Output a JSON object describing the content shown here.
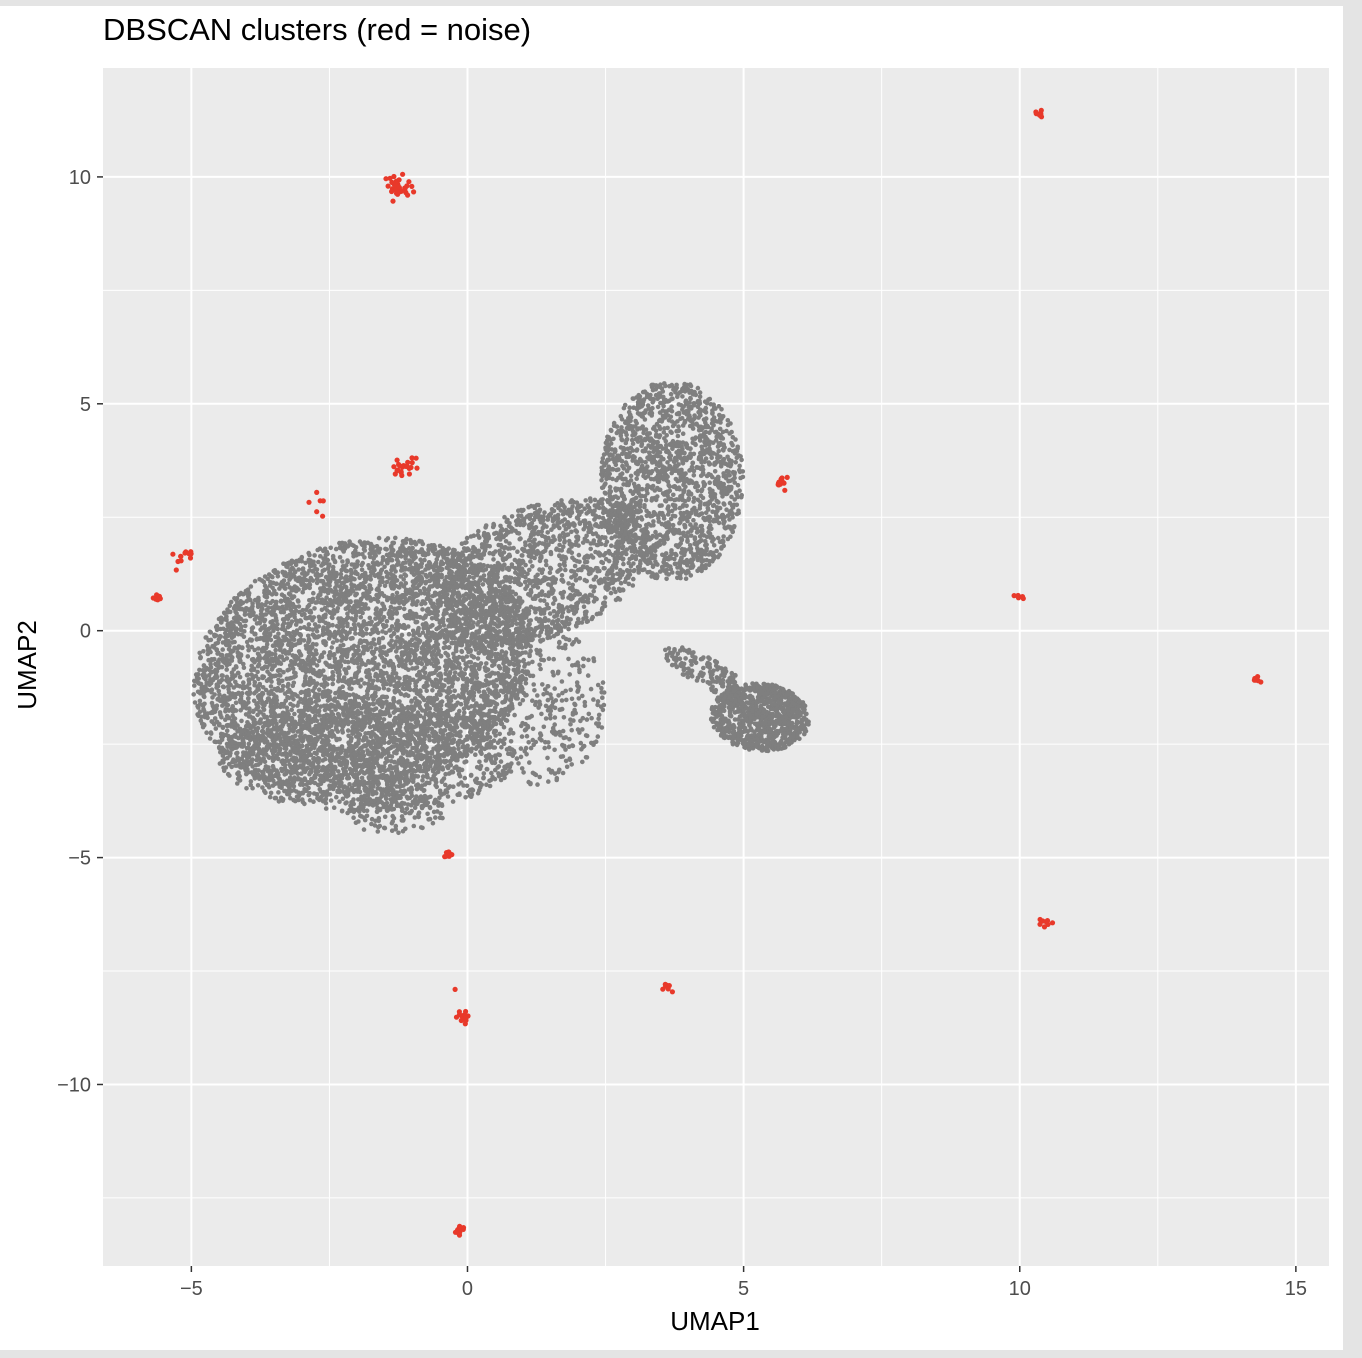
{
  "chart_data": {
    "type": "scatter",
    "title": "DBSCAN clusters (red = noise)",
    "xlabel": "UMAP1",
    "ylabel": "UMAP2",
    "xlim": [
      -6.6,
      15.6
    ],
    "ylim": [
      -14.0,
      12.4
    ],
    "x_ticks": [
      -5,
      0,
      5,
      10,
      15
    ],
    "y_ticks": [
      -10,
      -5,
      0,
      5,
      10
    ],
    "x_tick_labels": [
      "−5",
      "0",
      "5",
      "10",
      "15"
    ],
    "y_tick_labels": [
      "−10",
      "−5",
      "0",
      "5",
      "10"
    ],
    "grid": true,
    "legend": "none",
    "colors": {
      "panel_background": "#ebebeb",
      "grid": "#ffffff",
      "cluster": "#7f7f7f",
      "noise": "#e8392a"
    },
    "main_cluster_regions": [
      {
        "name": "main body",
        "cx": -1.9,
        "cy": -0.8,
        "rx": 3.2,
        "ry": 2.7,
        "angle_deg": 32,
        "n": 5200
      },
      {
        "name": "main body lower",
        "cx": -1.8,
        "cy": -2.8,
        "rx": 2.7,
        "ry": 1.2,
        "angle_deg": 0,
        "n": 1100
      },
      {
        "name": "main body tail",
        "cx": -1.3,
        "cy": -4.0,
        "rx": 0.9,
        "ry": 0.5,
        "angle_deg": 0,
        "n": 150
      },
      {
        "name": "bridge",
        "cx": 1.3,
        "cy": 1.3,
        "rx": 2.2,
        "ry": 1.4,
        "angle_deg": 30,
        "n": 1400
      },
      {
        "name": "lower middle lobe",
        "cx": 1.2,
        "cy": -1.6,
        "rx": 1.3,
        "ry": 1.8,
        "angle_deg": 0,
        "n": 450
      },
      {
        "name": "upper right lobe",
        "cx": 3.7,
        "cy": 3.3,
        "rx": 1.3,
        "ry": 2.2,
        "angle_deg": 0,
        "n": 1600
      },
      {
        "name": "thin arm",
        "cx": 4.3,
        "cy": -0.9,
        "rx": 0.9,
        "ry": 0.3,
        "angle_deg": -35,
        "n": 160
      },
      {
        "name": "right satellite cluster",
        "cx": 5.3,
        "cy": -1.9,
        "rx": 0.9,
        "ry": 0.75,
        "angle_deg": -10,
        "n": 900
      }
    ],
    "noise_groups": [
      {
        "x": -1.25,
        "y": 9.78,
        "spread": 0.12,
        "n": 34
      },
      {
        "x": 10.35,
        "y": 11.35,
        "spread": 0.06,
        "n": 8
      },
      {
        "x": -1.15,
        "y": 3.65,
        "spread": 0.12,
        "n": 22
      },
      {
        "x": -2.65,
        "y": 2.8,
        "spread": 0.15,
        "n": 6
      },
      {
        "x": -5.2,
        "y": 1.6,
        "spread": 0.12,
        "n": 12
      },
      {
        "x": -5.65,
        "y": 0.72,
        "spread": 0.04,
        "n": 6
      },
      {
        "x": 5.7,
        "y": 3.28,
        "spread": 0.07,
        "n": 12
      },
      {
        "x": 9.95,
        "y": 0.72,
        "spread": 0.07,
        "n": 6
      },
      {
        "x": 14.25,
        "y": -1.08,
        "spread": 0.05,
        "n": 7
      },
      {
        "x": -0.35,
        "y": -4.95,
        "spread": 0.05,
        "n": 8
      },
      {
        "x": 10.45,
        "y": -6.45,
        "spread": 0.05,
        "n": 10
      },
      {
        "x": 3.6,
        "y": -7.85,
        "spread": 0.06,
        "n": 7
      },
      {
        "x": -0.1,
        "y": -8.55,
        "spread": 0.07,
        "n": 14
      },
      {
        "x": -0.22,
        "y": -7.9,
        "spread": 0.01,
        "n": 1
      },
      {
        "x": -0.15,
        "y": -13.2,
        "spread": 0.06,
        "n": 12
      }
    ]
  }
}
